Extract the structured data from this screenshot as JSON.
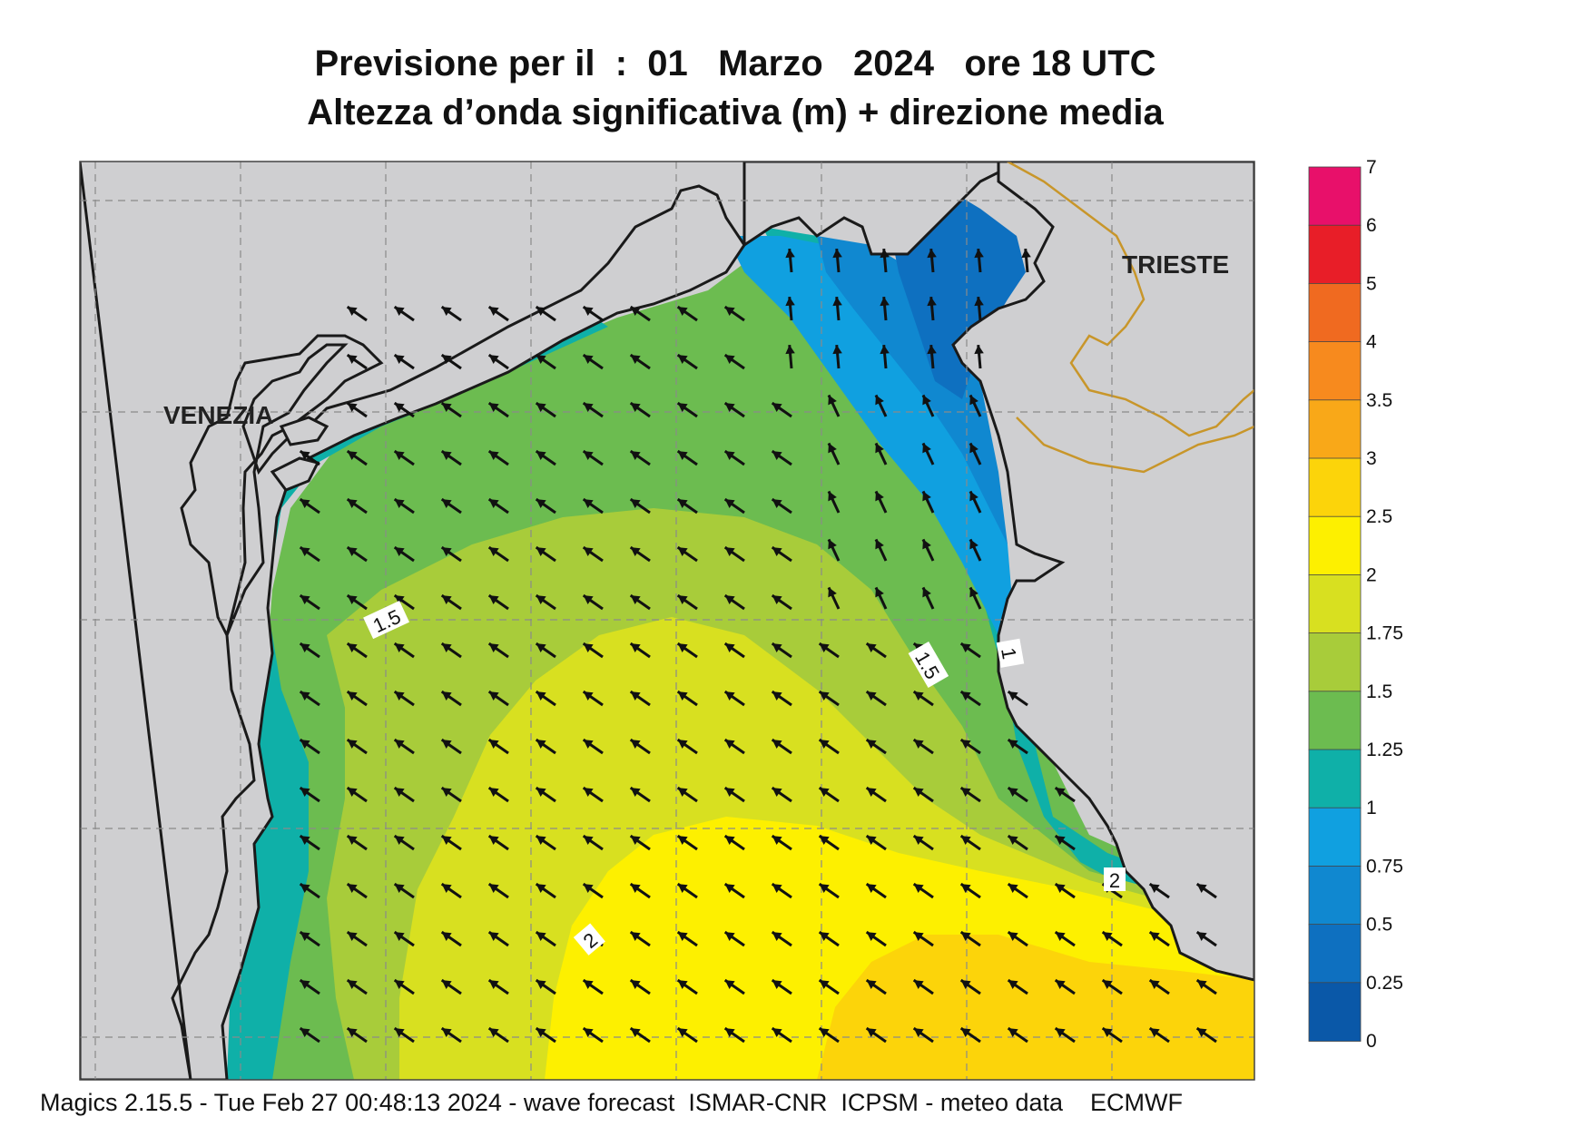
{
  "title": {
    "line1": "Previsione per il  :  01   Marzo   2024   ore 18 UTC",
    "line2": "Altezza d’onda significativa (m) + direzione media"
  },
  "cities": {
    "venezia": "VENEZIA",
    "trieste": "TRIESTE"
  },
  "contour_labels": [
    "1.5",
    "1.5",
    "1",
    "2",
    "2"
  ],
  "colorbar": {
    "labels": [
      "7",
      "6",
      "5",
      "4",
      "3.5",
      "3",
      "2.5",
      "2",
      "1.75",
      "1.5",
      "1.25",
      "1",
      "0.75",
      "0.5",
      "0.25",
      "0"
    ],
    "colors": [
      "#e8106a",
      "#e81e28",
      "#f06a20",
      "#f78a1e",
      "#f9a818",
      "#fcd40a",
      "#fdf000",
      "#d8e020",
      "#a8cc3a",
      "#6cbc50",
      "#0fb0a8",
      "#10a0e0",
      "#1088d0",
      "#0e70c0",
      "#0a58a8"
    ]
  },
  "footer": "Magics 2.15.5 - Tue Feb 27 00:48:13 2024 - wave forecast  ISMAR-CNR  ICPSM - meteo data    ECMWF",
  "colors": {
    "land": "#cfcfd1",
    "sea_base": "#fdf000"
  }
}
